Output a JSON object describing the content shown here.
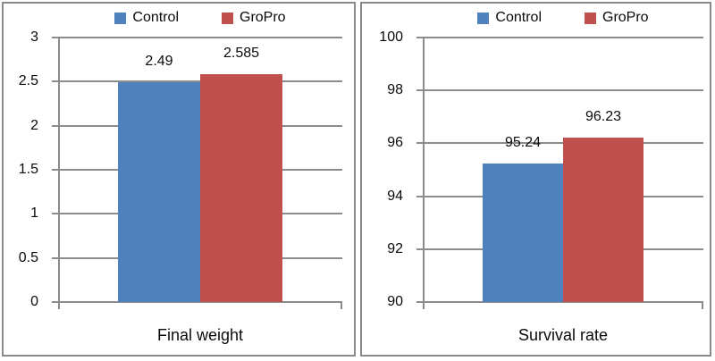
{
  "colors": {
    "control_series": "#4F81BD",
    "gropro_series": "#C0504D",
    "gridline": "#8c8c8c",
    "axis_line": "#8c8c8c",
    "panel_border": "#8a8a8a",
    "text": "#0a0a0a"
  },
  "chart_data": [
    {
      "type": "bar",
      "title": "",
      "xlabel": "Final weight",
      "ylabel": "",
      "categories": [
        "Final weight"
      ],
      "series": [
        {
          "name": "Control",
          "values": [
            2.49
          ],
          "data_labels": [
            "2.49"
          ],
          "color": "#4F81BD"
        },
        {
          "name": "GroPro",
          "values": [
            2.585
          ],
          "data_labels": [
            "2.585"
          ],
          "color": "#C0504D"
        }
      ],
      "ylim": [
        0,
        3
      ],
      "ytick_step": 0.5,
      "yticks": [
        {
          "value": 0,
          "label": "0"
        },
        {
          "value": 0.5,
          "label": "0.5"
        },
        {
          "value": 1,
          "label": "1"
        },
        {
          "value": 1.5,
          "label": "1.5"
        },
        {
          "value": 2,
          "label": "2"
        },
        {
          "value": 2.5,
          "label": "2.5"
        },
        {
          "value": 3,
          "label": "3"
        }
      ],
      "grid": true,
      "legend_position": "top"
    },
    {
      "type": "bar",
      "title": "",
      "xlabel": "Survival rate",
      "ylabel": "",
      "categories": [
        "Survival rate"
      ],
      "series": [
        {
          "name": "Control",
          "values": [
            95.24
          ],
          "data_labels": [
            "95.24"
          ],
          "color": "#4F81BD"
        },
        {
          "name": "GroPro",
          "values": [
            96.23
          ],
          "data_labels": [
            "96.23"
          ],
          "color": "#C0504D"
        }
      ],
      "ylim": [
        90,
        100
      ],
      "ytick_step": 2,
      "yticks": [
        {
          "value": 90,
          "label": "90"
        },
        {
          "value": 92,
          "label": "92"
        },
        {
          "value": 94,
          "label": "94"
        },
        {
          "value": 96,
          "label": "96"
        },
        {
          "value": 98,
          "label": "98"
        },
        {
          "value": 100,
          "label": "100"
        }
      ],
      "grid": true,
      "legend_position": "top"
    }
  ]
}
